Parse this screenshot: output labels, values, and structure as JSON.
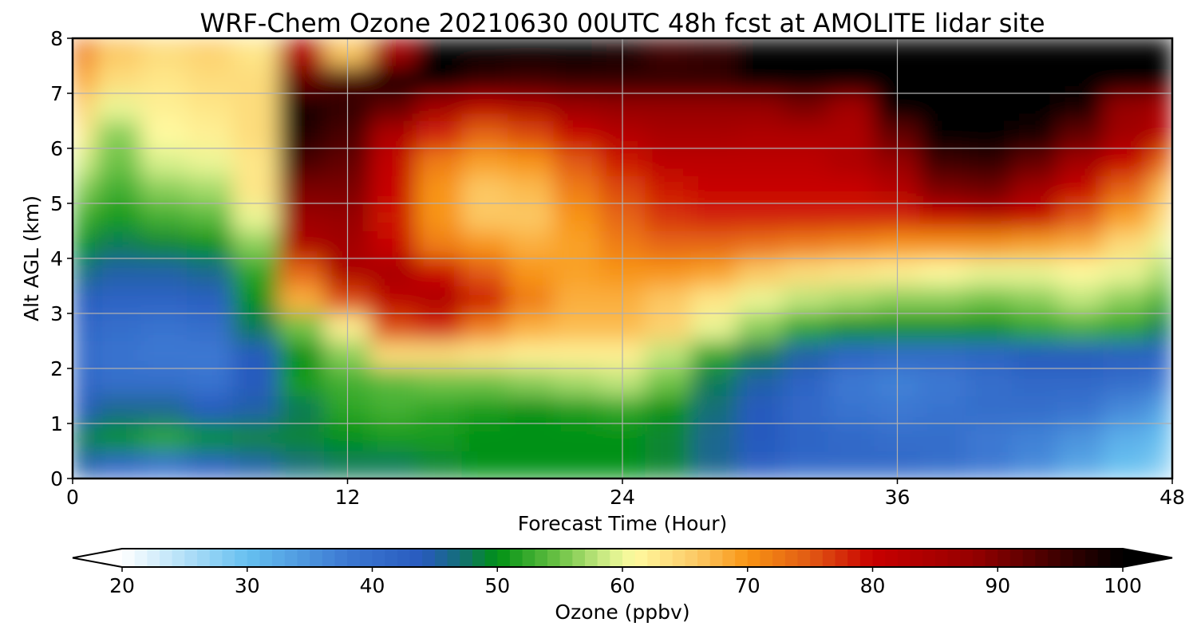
{
  "chart_data": {
    "type": "heatmap",
    "title": "WRF-Chem Ozone  20210630 00UTC 48h fcst at AMOLITE lidar site",
    "xlabel": "Forecast Time (Hour)",
    "ylabel": "Alt AGL (km)",
    "xlim": [
      0,
      48
    ],
    "ylim": [
      0,
      8
    ],
    "x_ticks": [
      "0",
      "12",
      "24",
      "36",
      "48"
    ],
    "y_ticks": [
      "0",
      "1",
      "2",
      "3",
      "4",
      "5",
      "6",
      "7",
      "8"
    ],
    "grid": true,
    "colorbar": {
      "label": "Ozone  (ppbv)",
      "range": [
        20,
        100
      ],
      "extend": "both",
      "ticks": [
        "20",
        "30",
        "40",
        "50",
        "60",
        "70",
        "80",
        "90",
        "100"
      ]
    },
    "x": [
      0,
      2,
      4,
      6,
      8,
      10,
      12,
      14,
      16,
      18,
      20,
      22,
      24,
      26,
      28,
      30,
      32,
      34,
      36,
      38,
      40,
      42,
      44,
      46,
      48
    ],
    "y": [
      0.25,
      0.75,
      1.25,
      1.75,
      2.25,
      2.75,
      3.25,
      3.75,
      4.25,
      4.75,
      5.25,
      5.75,
      6.25,
      6.75,
      7.25,
      7.75
    ],
    "z": [
      [
        45,
        42,
        40,
        43,
        45,
        47,
        48,
        48,
        49,
        50,
        50,
        50,
        50,
        49,
        46,
        43,
        41,
        41,
        41,
        40,
        38,
        36,
        33,
        30,
        28
      ],
      [
        48,
        50,
        52,
        50,
        49,
        49,
        50,
        51,
        51,
        50,
        50,
        50,
        50,
        49,
        46,
        44,
        42,
        41,
        40,
        40,
        38,
        37,
        35,
        32,
        30
      ],
      [
        44,
        46,
        46,
        44,
        45,
        48,
        52,
        53,
        52,
        51,
        50,
        51,
        52,
        50,
        47,
        44,
        41,
        39,
        38,
        39,
        40,
        40,
        39,
        36,
        33
      ],
      [
        42,
        40,
        40,
        39,
        44,
        51,
        53,
        54,
        55,
        55,
        56,
        57,
        58,
        55,
        48,
        45,
        42,
        38,
        37,
        38,
        40,
        41,
        41,
        40,
        38
      ],
      [
        41,
        39,
        38,
        38,
        44,
        50,
        56,
        64,
        64,
        63,
        62,
        62,
        62,
        58,
        52,
        48,
        45,
        42,
        41,
        41,
        42,
        44,
        44,
        43,
        42
      ],
      [
        42,
        40,
        39,
        40,
        48,
        55,
        62,
        76,
        78,
        72,
        68,
        67,
        67,
        65,
        60,
        56,
        52,
        50,
        50,
        50,
        50,
        52,
        53,
        52,
        48
      ],
      [
        44,
        42,
        42,
        43,
        50,
        68,
        76,
        82,
        84,
        79,
        72,
        68,
        68,
        66,
        63,
        60,
        58,
        57,
        56,
        56,
        55,
        56,
        58,
        56,
        53
      ],
      [
        47,
        45,
        45,
        46,
        52,
        74,
        84,
        85,
        80,
        75,
        70,
        69,
        70,
        70,
        69,
        66,
        64,
        63,
        62,
        61,
        60,
        60,
        61,
        60,
        57
      ],
      [
        50,
        48,
        49,
        50,
        56,
        84,
        86,
        80,
        72,
        70,
        68,
        69,
        72,
        74,
        74,
        73,
        72,
        71,
        70,
        70,
        70,
        69,
        68,
        64,
        60
      ],
      [
        53,
        51,
        53,
        54,
        60,
        87,
        88,
        79,
        70,
        66,
        66,
        70,
        74,
        77,
        78,
        78,
        78,
        78,
        78,
        80,
        82,
        80,
        75,
        69,
        64
      ],
      [
        56,
        53,
        56,
        57,
        63,
        90,
        90,
        80,
        70,
        66,
        67,
        72,
        76,
        79,
        80,
        80,
        80,
        80,
        83,
        90,
        91,
        86,
        80,
        74,
        67
      ],
      [
        59,
        55,
        59,
        60,
        63,
        94,
        92,
        81,
        72,
        69,
        70,
        75,
        79,
        82,
        82,
        82,
        82,
        84,
        88,
        95,
        96,
        92,
        86,
        80,
        74
      ],
      [
        62,
        56,
        61,
        62,
        64,
        97,
        94,
        84,
        78,
        74,
        76,
        80,
        83,
        85,
        85,
        84,
        84,
        84,
        92,
        100,
        100,
        98,
        92,
        86,
        82
      ],
      [
        65,
        60,
        62,
        63,
        64,
        98,
        96,
        92,
        86,
        82,
        84,
        87,
        88,
        88,
        88,
        88,
        90,
        86,
        100,
        100,
        100,
        100,
        98,
        88,
        85
      ],
      [
        69,
        64,
        63,
        64,
        64,
        92,
        94,
        100,
        100,
        96,
        95,
        96,
        96,
        96,
        96,
        100,
        100,
        100,
        100,
        100,
        100,
        100,
        100,
        100,
        100
      ],
      [
        72,
        66,
        64,
        65,
        63,
        83,
        66,
        86,
        100,
        100,
        100,
        100,
        98,
        95,
        96,
        100,
        100,
        100,
        100,
        100,
        100,
        100,
        100,
        100,
        100
      ]
    ]
  }
}
